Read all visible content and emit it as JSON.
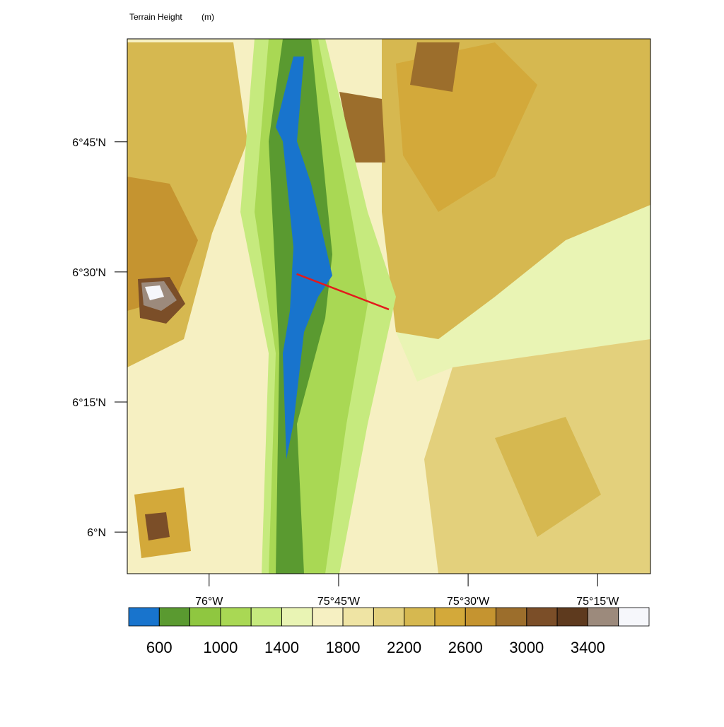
{
  "map": {
    "title": "Terrain Height",
    "units": "(m)",
    "xlim": [
      -76.158,
      -75.148
    ],
    "ylim": [
      5.92,
      6.948
    ],
    "xticks": [
      {
        "value": -76,
        "label": "76°W"
      },
      {
        "value": -75.75,
        "label": "75°45'W"
      },
      {
        "value": -75.5,
        "label": "75°30'W"
      },
      {
        "value": -75.25,
        "label": "75°15'W"
      }
    ],
    "yticks": [
      {
        "value": 6,
        "label": "6°N"
      },
      {
        "value": 6.25,
        "label": "6°15'N"
      },
      {
        "value": 6.5,
        "label": "6°30'N"
      },
      {
        "value": 6.75,
        "label": "6°45'N"
      }
    ],
    "cross_section": {
      "color": "#e31a1c",
      "lon": [
        -75.831,
        -75.653
      ],
      "lat": [
        6.496,
        6.428
      ]
    }
  },
  "colorbar": {
    "levels": [
      600,
      800,
      1000,
      1200,
      1400,
      1600,
      1800,
      2000,
      2200,
      2400,
      2600,
      2800,
      3000,
      3200,
      3400,
      3600
    ],
    "colors": [
      "#1874cd",
      "#5a9a30",
      "#8fc740",
      "#a9d854",
      "#c6ea7e",
      "#e9f4b4",
      "#f6f0c2",
      "#efe4a4",
      "#e3d07c",
      "#d6b850",
      "#d3a93a",
      "#c59430",
      "#9c6e2c",
      "#7b4e28",
      "#5e3a1e",
      "#9c8a7c",
      "#f6f7fb"
    ],
    "ticks": [
      600,
      1000,
      1400,
      1800,
      2200,
      2600,
      3000,
      3400
    ]
  }
}
